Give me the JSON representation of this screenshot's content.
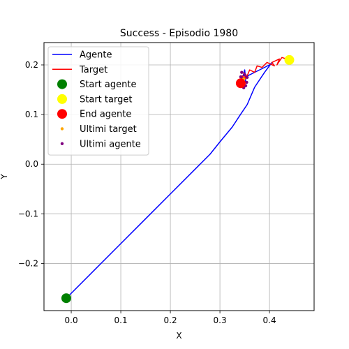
{
  "chart_data": {
    "type": "line",
    "title": "Success - Episodio 1980",
    "xlabel": "X",
    "ylabel": "Y",
    "xlim": [
      -0.055,
      0.49
    ],
    "ylim": [
      -0.295,
      0.245
    ],
    "xticks": [
      0.0,
      0.1,
      0.2,
      0.3,
      0.4
    ],
    "xtick_labels": [
      "0.0",
      "0.1",
      "0.2",
      "0.3",
      "0.4"
    ],
    "yticks": [
      -0.2,
      -0.1,
      0.0,
      0.1,
      0.2
    ],
    "ytick_labels": [
      "−0.2",
      "−0.1",
      "0.0",
      "0.1",
      "0.2"
    ],
    "grid": true,
    "legend_position": "top-left",
    "series": [
      {
        "name": "Agente",
        "kind": "line",
        "color": "#0000ff",
        "x": [
          -0.01,
          0.05,
          0.1,
          0.15,
          0.2,
          0.25,
          0.28,
          0.3,
          0.325,
          0.34,
          0.355,
          0.37,
          0.39,
          0.405,
          0.4,
          0.38,
          0.36,
          0.345,
          0.35,
          0.352,
          0.348,
          0.344,
          0.346
        ],
        "y": [
          -0.27,
          -0.21,
          -0.16,
          -0.11,
          -0.06,
          -0.01,
          0.02,
          0.045,
          0.075,
          0.098,
          0.12,
          0.155,
          0.185,
          0.205,
          0.2,
          0.19,
          0.18,
          0.172,
          0.19,
          0.17,
          0.158,
          0.166,
          0.164
        ]
      },
      {
        "name": "Target",
        "kind": "line",
        "color": "#ff0000",
        "x": [
          0.44,
          0.425,
          0.415,
          0.42,
          0.405,
          0.41,
          0.395,
          0.385,
          0.375,
          0.37,
          0.36,
          0.355,
          0.348,
          0.352,
          0.345,
          0.342,
          0.346,
          0.343
        ],
        "y": [
          0.21,
          0.215,
          0.2,
          0.212,
          0.205,
          0.198,
          0.205,
          0.195,
          0.198,
          0.185,
          0.19,
          0.178,
          0.184,
          0.172,
          0.178,
          0.166,
          0.17,
          0.164
        ]
      },
      {
        "name": "Start agente",
        "kind": "point",
        "color": "#008000",
        "x": [
          -0.01
        ],
        "y": [
          -0.27
        ]
      },
      {
        "name": "Start target",
        "kind": "point",
        "color": "#ffff00",
        "x": [
          0.44
        ],
        "y": [
          0.21
        ]
      },
      {
        "name": "End agente",
        "kind": "point",
        "color": "#ff0000",
        "x": [
          0.342
        ],
        "y": [
          0.163
        ]
      },
      {
        "name": "Ultimi target",
        "kind": "scatter",
        "color": "#ffa500",
        "x": [
          0.343,
          0.346,
          0.348,
          0.345
        ],
        "y": [
          0.164,
          0.168,
          0.172,
          0.166
        ]
      },
      {
        "name": "Ultimi agente",
        "kind": "scatter",
        "color": "#800080",
        "x": [
          0.344,
          0.35,
          0.355,
          0.352,
          0.346,
          0.342,
          0.348,
          0.354
        ],
        "y": [
          0.185,
          0.18,
          0.175,
          0.158,
          0.168,
          0.176,
          0.154,
          0.165
        ]
      }
    ]
  }
}
